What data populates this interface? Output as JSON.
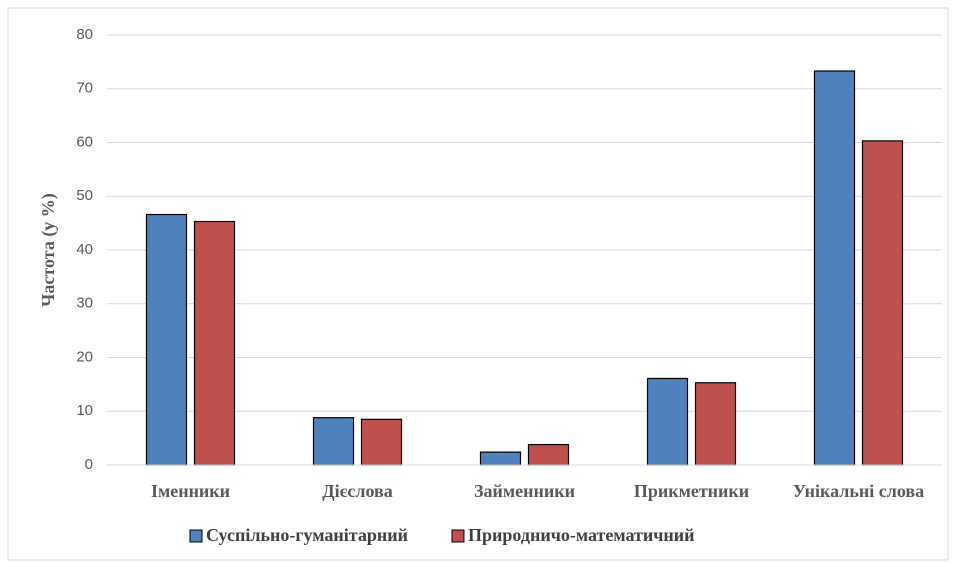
{
  "chart_data": {
    "type": "bar",
    "y_label": "Частота  (у %)",
    "categories": [
      "Іменники",
      "Дієслова",
      "Займенники",
      "Прикметники",
      "Унікальні слова"
    ],
    "series": [
      {
        "name": "Суспільно-гуманітарний",
        "color": "#4f81bd",
        "values": [
          46.6,
          8.8,
          2.4,
          16.1,
          73.3
        ]
      },
      {
        "name": "Природничо-математичний",
        "color": "#c0504d",
        "values": [
          45.3,
          8.5,
          3.8,
          15.3,
          60.3
        ]
      }
    ],
    "ylim": [
      0,
      80
    ],
    "yticks": [
      0,
      10,
      20,
      30,
      40,
      50,
      60,
      70,
      80
    ],
    "grid": true,
    "legend": "bottom"
  }
}
